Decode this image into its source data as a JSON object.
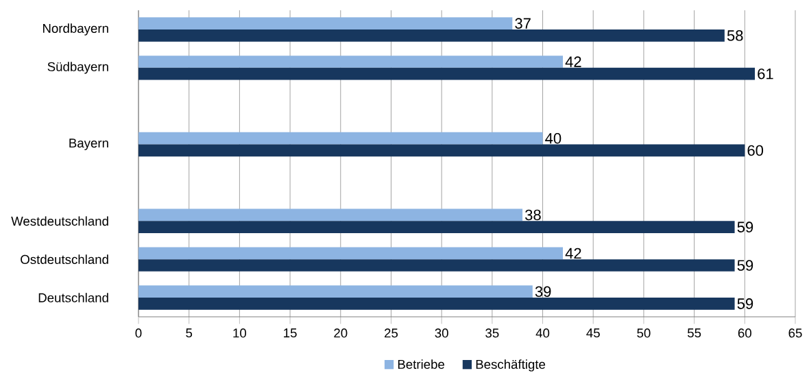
{
  "chart_data": {
    "type": "bar",
    "orientation": "horizontal",
    "categories": [
      "Nordbayern",
      "Südbayern",
      null,
      "Bayern",
      null,
      "Westdeutschland",
      "Ostdeutschland",
      "Deutschland"
    ],
    "series": [
      {
        "name": "Betriebe",
        "color": "#8db4e2",
        "values": [
          37,
          42,
          null,
          40,
          null,
          38,
          42,
          39
        ]
      },
      {
        "name": "Beschäftigte",
        "color": "#17375e",
        "values": [
          58,
          61,
          null,
          60,
          null,
          59,
          59,
          59
        ]
      }
    ],
    "xlim": [
      0,
      65
    ],
    "xticks": [
      0,
      5,
      10,
      15,
      20,
      25,
      30,
      35,
      40,
      45,
      50,
      55,
      60,
      65
    ],
    "grid": "x",
    "legend": "bottom",
    "data_labels": true
  }
}
